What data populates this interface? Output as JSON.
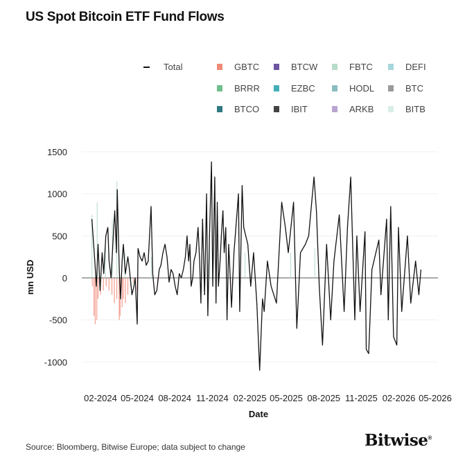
{
  "chart_data": {
    "type": "line",
    "title": "US Spot Bitcoin ETF Fund Flows",
    "xlabel": "Date",
    "ylabel": "mn USD",
    "ylim": [
      -1250,
      1600
    ],
    "yticks": [
      1500,
      1000,
      500,
      0,
      -500,
      -1000
    ],
    "ytick_labels": [
      "1500",
      "1000",
      "500",
      "0",
      "-500",
      "-1000"
    ],
    "xticks": [
      "2024-02-01",
      "2024-05-01",
      "2024-08-01",
      "2024-11-01",
      "2025-02-01",
      "2025-05-01",
      "2025-08-01",
      "2025-11-01",
      "2026-02-01",
      "2026-05-01"
    ],
    "xtick_labels": [
      "02-2024",
      "05-2024",
      "08-2024",
      "11-2024",
      "02-2025",
      "05-2025",
      "08-2025",
      "11-2025",
      "02-2026",
      "05-2026"
    ],
    "grid": true,
    "legend_position": "top",
    "legend": [
      {
        "name": "Total",
        "kind": "line",
        "color": "#111111"
      },
      {
        "name": "GBTC",
        "kind": "bar",
        "color": "#f08a78"
      },
      {
        "name": "BTCW",
        "kind": "bar",
        "color": "#6e55a0"
      },
      {
        "name": "FBTC",
        "kind": "bar",
        "color": "#b8dcc8"
      },
      {
        "name": "DEFI",
        "kind": "bar",
        "color": "#a9d6dc"
      },
      {
        "name": "BRRR",
        "kind": "bar",
        "color": "#6fbf8c"
      },
      {
        "name": "EZBC",
        "kind": "bar",
        "color": "#43adb8"
      },
      {
        "name": "HODL",
        "kind": "bar",
        "color": "#8bbcbf"
      },
      {
        "name": "BTC",
        "kind": "bar",
        "color": "#9a9a9a"
      },
      {
        "name": "BTCO",
        "kind": "bar",
        "color": "#2f7a82"
      },
      {
        "name": "IBIT",
        "kind": "bar",
        "color": "#444444"
      },
      {
        "name": "ARKB",
        "kind": "bar",
        "color": "#b9a5cf"
      },
      {
        "name": "BITB",
        "kind": "bar",
        "color": "#d9ede8"
      }
    ],
    "series": [
      {
        "name": "Total",
        "points": [
          [
            "2024-01-11",
            700
          ],
          [
            "2024-01-18",
            200
          ],
          [
            "2024-01-22",
            -100
          ],
          [
            "2024-01-26",
            400
          ],
          [
            "2024-01-31",
            -150
          ],
          [
            "2024-02-05",
            300
          ],
          [
            "2024-02-09",
            50
          ],
          [
            "2024-02-14",
            500
          ],
          [
            "2024-02-19",
            600
          ],
          [
            "2024-02-22",
            200
          ],
          [
            "2024-02-27",
            0
          ],
          [
            "2024-03-04",
            550
          ],
          [
            "2024-03-07",
            800
          ],
          [
            "2024-03-11",
            300
          ],
          [
            "2024-03-13",
            1050
          ],
          [
            "2024-03-18",
            100
          ],
          [
            "2024-03-21",
            -250
          ],
          [
            "2024-03-25",
            200
          ],
          [
            "2024-03-28",
            400
          ],
          [
            "2024-04-02",
            50
          ],
          [
            "2024-04-08",
            250
          ],
          [
            "2024-04-12",
            100
          ],
          [
            "2024-04-18",
            -200
          ],
          [
            "2024-04-23",
            -100
          ],
          [
            "2024-04-26",
            0
          ],
          [
            "2024-05-01",
            -550
          ],
          [
            "2024-05-03",
            350
          ],
          [
            "2024-05-08",
            250
          ],
          [
            "2024-05-13",
            200
          ],
          [
            "2024-05-18",
            300
          ],
          [
            "2024-05-23",
            150
          ],
          [
            "2024-05-28",
            200
          ],
          [
            "2024-06-04",
            850
          ],
          [
            "2024-06-08",
            50
          ],
          [
            "2024-06-13",
            -200
          ],
          [
            "2024-06-18",
            -150
          ],
          [
            "2024-06-24",
            100
          ],
          [
            "2024-06-28",
            150
          ],
          [
            "2024-07-03",
            300
          ],
          [
            "2024-07-08",
            400
          ],
          [
            "2024-07-13",
            250
          ],
          [
            "2024-07-18",
            -50
          ],
          [
            "2024-07-23",
            100
          ],
          [
            "2024-07-28",
            50
          ],
          [
            "2024-08-02",
            -100
          ],
          [
            "2024-08-07",
            -200
          ],
          [
            "2024-08-12",
            50
          ],
          [
            "2024-08-17",
            0
          ],
          [
            "2024-08-22",
            100
          ],
          [
            "2024-08-27",
            250
          ],
          [
            "2024-08-31",
            500
          ],
          [
            "2024-09-04",
            200
          ],
          [
            "2024-09-07",
            400
          ],
          [
            "2024-09-10",
            -100
          ],
          [
            "2024-09-14",
            0
          ],
          [
            "2024-09-17",
            200
          ],
          [
            "2024-09-22",
            300
          ],
          [
            "2024-09-27",
            600
          ],
          [
            "2024-10-01",
            200
          ],
          [
            "2024-10-04",
            -300
          ],
          [
            "2024-10-08",
            700
          ],
          [
            "2024-10-13",
            -200
          ],
          [
            "2024-10-18",
            1000
          ],
          [
            "2024-10-21",
            -450
          ],
          [
            "2024-10-25",
            500
          ],
          [
            "2024-10-30",
            1380
          ],
          [
            "2024-11-02",
            -100
          ],
          [
            "2024-11-07",
            1200
          ],
          [
            "2024-11-10",
            -300
          ],
          [
            "2024-11-13",
            900
          ],
          [
            "2024-11-16",
            -100
          ],
          [
            "2024-11-20",
            200
          ],
          [
            "2024-11-23",
            500
          ],
          [
            "2024-11-27",
            800
          ],
          [
            "2024-11-30",
            300
          ],
          [
            "2024-12-04",
            600
          ],
          [
            "2024-12-07",
            -500
          ],
          [
            "2024-12-11",
            400
          ],
          [
            "2024-12-14",
            100
          ],
          [
            "2024-12-18",
            -350
          ],
          [
            "2024-12-24",
            300
          ],
          [
            "2025-01-04",
            1000
          ],
          [
            "2025-01-07",
            -400
          ],
          [
            "2025-01-13",
            1100
          ],
          [
            "2025-01-17",
            600
          ],
          [
            "2025-01-27",
            400
          ],
          [
            "2025-02-03",
            -100
          ],
          [
            "2025-02-10",
            300
          ],
          [
            "2025-02-18",
            -300
          ],
          [
            "2025-02-25",
            -1100
          ],
          [
            "2025-03-04",
            -250
          ],
          [
            "2025-03-08",
            -400
          ],
          [
            "2025-03-16",
            200
          ],
          [
            "2025-03-25",
            -100
          ],
          [
            "2025-04-07",
            -300
          ],
          [
            "2025-04-20",
            900
          ],
          [
            "2025-04-29",
            600
          ],
          [
            "2025-05-06",
            300
          ],
          [
            "2025-05-19",
            900
          ],
          [
            "2025-05-27",
            -600
          ],
          [
            "2025-06-05",
            300
          ],
          [
            "2025-06-17",
            400
          ],
          [
            "2025-06-25",
            500
          ],
          [
            "2025-07-08",
            1200
          ],
          [
            "2025-07-14",
            800
          ],
          [
            "2025-07-21",
            -100
          ],
          [
            "2025-07-29",
            -800
          ],
          [
            "2025-08-08",
            400
          ],
          [
            "2025-08-18",
            -500
          ],
          [
            "2025-08-26",
            200
          ],
          [
            "2025-09-08",
            750
          ],
          [
            "2025-09-20",
            -400
          ],
          [
            "2025-09-28",
            600
          ],
          [
            "2025-10-06",
            1200
          ],
          [
            "2025-10-16",
            -500
          ],
          [
            "2025-10-21",
            500
          ],
          [
            "2025-10-29",
            -400
          ],
          [
            "2025-11-10",
            550
          ],
          [
            "2025-11-13",
            -850
          ],
          [
            "2025-11-19",
            -900
          ],
          [
            "2025-11-27",
            100
          ],
          [
            "2025-12-14",
            450
          ],
          [
            "2025-12-19",
            -200
          ],
          [
            "2026-01-02",
            700
          ],
          [
            "2026-01-06",
            -500
          ],
          [
            "2026-01-12",
            850
          ],
          [
            "2026-01-19",
            -700
          ],
          [
            "2026-01-27",
            -800
          ],
          [
            "2026-01-31",
            600
          ],
          [
            "2026-02-08",
            -400
          ],
          [
            "2026-02-22",
            500
          ],
          [
            "2026-03-02",
            -300
          ],
          [
            "2026-03-14",
            200
          ],
          [
            "2026-03-22",
            -200
          ],
          [
            "2026-03-27",
            100
          ]
        ]
      },
      {
        "name": "GBTC",
        "points": [
          [
            "2024-01-12",
            -100
          ],
          [
            "2024-01-16",
            -450
          ],
          [
            "2024-01-19",
            -550
          ],
          [
            "2024-01-23",
            -500
          ],
          [
            "2024-01-26",
            -250
          ],
          [
            "2024-02-01",
            -200
          ],
          [
            "2024-02-08",
            -150
          ],
          [
            "2024-02-15",
            -100
          ],
          [
            "2024-02-22",
            -150
          ],
          [
            "2024-02-29",
            -200
          ],
          [
            "2024-03-06",
            -300
          ],
          [
            "2024-03-12",
            -250
          ],
          [
            "2024-03-18",
            -500
          ],
          [
            "2024-03-20",
            -450
          ],
          [
            "2024-03-25",
            -350
          ],
          [
            "2024-03-28",
            -250
          ],
          [
            "2024-04-02",
            -300
          ],
          [
            "2024-04-08",
            -200
          ],
          [
            "2024-04-15",
            -100
          ],
          [
            "2024-04-22",
            -50
          ],
          [
            "2024-05-01",
            -150
          ],
          [
            "2024-06-20",
            -80
          ],
          [
            "2024-12-20",
            -100
          ]
        ]
      },
      {
        "name": "FBTC",
        "points": [
          [
            "2024-01-11",
            750
          ],
          [
            "2024-01-24",
            900
          ],
          [
            "2024-02-13",
            400
          ],
          [
            "2024-03-01",
            700
          ],
          [
            "2024-03-12",
            1150
          ],
          [
            "2024-04-01",
            300
          ],
          [
            "2024-06-05",
            250
          ],
          [
            "2024-10-25",
            400
          ],
          [
            "2025-01-20",
            300
          ],
          [
            "2025-05-12",
            300
          ],
          [
            "2025-07-10",
            350
          ]
        ]
      }
    ]
  },
  "source": "Source: Bloomberg, Bitwise Europe; data subject to change",
  "logo": "Bitwise"
}
